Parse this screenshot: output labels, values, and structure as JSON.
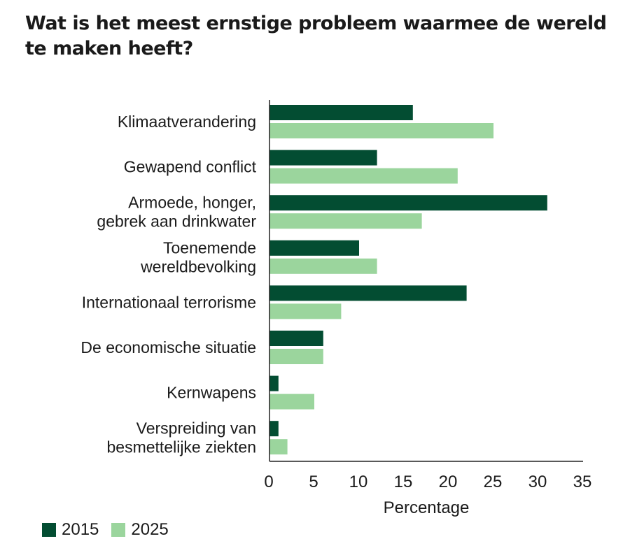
{
  "chart_data": {
    "type": "bar",
    "orientation": "horizontal",
    "title": "Wat is het meest ernstige probleem waarmee de wereld te maken heeft?",
    "xlabel": "Percentage",
    "ylabel": "",
    "xlim": [
      0,
      35
    ],
    "xticks": [
      "0",
      "5",
      "10",
      "15",
      "20",
      "25",
      "30",
      "35"
    ],
    "grid": false,
    "legend_position": "bottom-left",
    "categories": [
      [
        "Klimaatverandering"
      ],
      [
        "Gewapend conflict"
      ],
      [
        "Armoede, honger,",
        "gebrek aan drinkwater"
      ],
      [
        "Toenemende",
        "wereldbevolking"
      ],
      [
        "Internationaal terrorisme"
      ],
      [
        "De economische situatie"
      ],
      [
        "Kernwapens"
      ],
      [
        "Verspreiding van",
        "besmettelijke ziekten"
      ]
    ],
    "series": [
      {
        "name": "2015",
        "color": "#034d32",
        "values": [
          16,
          12,
          31,
          10,
          22,
          6,
          1,
          1
        ]
      },
      {
        "name": "2025",
        "color": "#9bd59d",
        "values": [
          25,
          21,
          17,
          12,
          8,
          6,
          5,
          2
        ]
      }
    ]
  }
}
